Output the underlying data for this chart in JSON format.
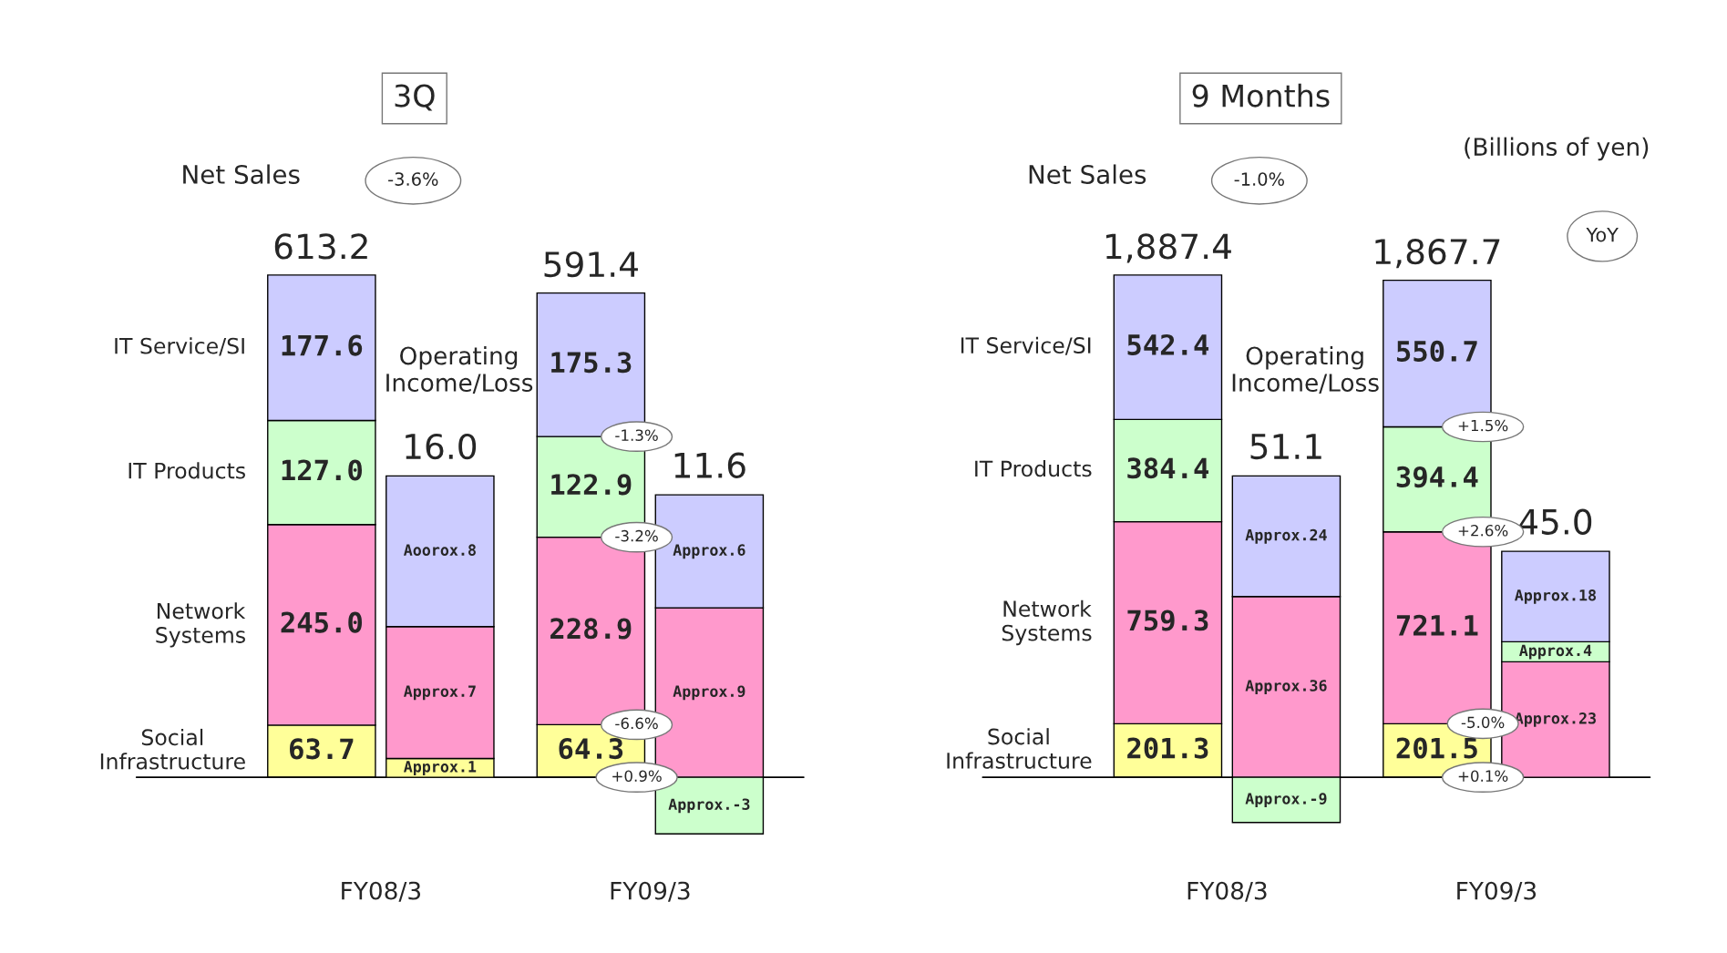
{
  "chart_data": [
    {
      "type": "bar",
      "stacked": true,
      "title": "3Q",
      "categories": [
        "FY08/3",
        "FY09/3"
      ],
      "legend": false,
      "tick_labels": "x",
      "series": [
        {
          "name": "Social\nInfrastructure",
          "color": "#ffff99",
          "values": [
            63.7,
            64.3
          ],
          "value_labels": [
            "63.7",
            "64.3"
          ]
        },
        {
          "name": "Network\nSystems",
          "color": "#ff99cc",
          "values": [
            245.0,
            228.9
          ],
          "value_labels": [
            "245.0",
            "228.9"
          ]
        },
        {
          "name": "IT Products",
          "color": "#ccffcc",
          "values": [
            127.0,
            122.9
          ],
          "value_labels": [
            "127.0",
            "122.9"
          ]
        },
        {
          "name": "IT Service/SI",
          "color": "#ccccff",
          "values": [
            177.6,
            175.3
          ],
          "value_labels": [
            "177.6",
            "175.3"
          ]
        },
        {
          "axis": "y2",
          "color": "#ffff99",
          "values": [
            1,
            null
          ],
          "value_labels": [
            "Approx.1",
            null
          ]
        },
        {
          "axis": "y2",
          "color": "#ff99cc",
          "values": [
            7,
            9
          ],
          "value_labels": [
            "Approx.7",
            "Approx.9"
          ]
        },
        {
          "axis": "y2",
          "color": "#ccffcc",
          "values": [
            null,
            -3
          ],
          "value_labels": [
            null,
            "Approx.-3"
          ]
        },
        {
          "axis": "y2",
          "color": "#ccccff",
          "values": [
            8,
            6
          ],
          "value_labels": [
            "Aoorox.8",
            "Approx.6"
          ]
        }
      ],
      "totals": [
        "613.2",
        "591.4"
      ],
      "annotations": [
        "Net Sales",
        "Operating\nIncome/Loss",
        "16.0",
        "11.6",
        "-3.6%",
        "-1.3%",
        "-3.2%",
        "-6.6%",
        "+0.9%"
      ]
    },
    {
      "type": "bar",
      "stacked": true,
      "title": "9 Months",
      "categories": [
        "FY08/3",
        "FY09/3"
      ],
      "legend": false,
      "tick_labels": "x",
      "series": [
        {
          "name": "Social\nInfrastructure",
          "color": "#ffff99",
          "values": [
            201.3,
            201.5
          ],
          "value_labels": [
            "201.3",
            "201.5"
          ]
        },
        {
          "name": "Network\nSystems",
          "color": "#ff99cc",
          "values": [
            759.3,
            721.1
          ],
          "value_labels": [
            "759.3",
            "721.1"
          ]
        },
        {
          "name": "IT Products",
          "color": "#ccffcc",
          "values": [
            384.4,
            394.4
          ],
          "value_labels": [
            "384.4",
            "394.4"
          ]
        },
        {
          "name": "IT Service/SI",
          "color": "#ccccff",
          "values": [
            542.4,
            550.7
          ],
          "value_labels": [
            "542.4",
            "550.7"
          ]
        },
        {
          "axis": "y2",
          "color": "#ff99cc",
          "values": [
            36,
            23
          ],
          "value_labels": [
            "Approx.36",
            "Approx.23"
          ]
        },
        {
          "axis": "y2",
          "color": "#ccffcc",
          "values": [
            -9,
            4
          ],
          "value_labels": [
            "Approx.-9",
            "Approx.4"
          ]
        },
        {
          "axis": "y2",
          "color": "#ccccff",
          "values": [
            24,
            18
          ],
          "value_labels": [
            "Approx.24",
            "Approx.18"
          ]
        }
      ],
      "totals": [
        "1,887.4",
        "1,867.7"
      ],
      "annotations": [
        "Net Sales",
        "Operating\nIncome/Loss",
        "51.1",
        "45.0",
        "-1.0%",
        "+1.5%",
        "+2.6%",
        "-5.0%",
        "+0.1%",
        "(Billions of yen)",
        "YoY"
      ]
    }
  ]
}
